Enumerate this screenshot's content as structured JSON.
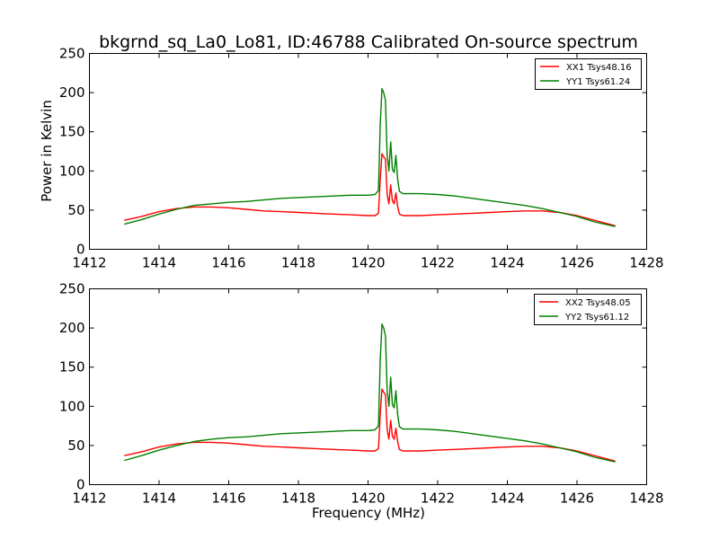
{
  "title": "bkgrnd_sq_La0_Lo81, ID:46788 Calibrated On-source spectrum",
  "xlabel": "Frequency (MHz)",
  "colors": {
    "xx": "#ff0000",
    "yy": "#008000"
  },
  "chart_data": [
    {
      "type": "line",
      "ylabel": "Power in Kelvin",
      "xlabel": "",
      "xlim": [
        1412,
        1428
      ],
      "ylim": [
        0,
        250
      ],
      "xticks": [
        "1412",
        "1414",
        "1416",
        "1418",
        "1420",
        "1422",
        "1424",
        "1426",
        "1428"
      ],
      "yticks": [
        "0",
        "50",
        "100",
        "150",
        "200",
        "250"
      ],
      "legend_position": "top-right",
      "series": [
        {
          "name": "XX1 Tsys48.16",
          "color": "#ff0000",
          "points": [
            [
              1413.0,
              37
            ],
            [
              1413.5,
              42
            ],
            [
              1414.0,
              48
            ],
            [
              1414.5,
              52
            ],
            [
              1415.0,
              54
            ],
            [
              1415.5,
              54
            ],
            [
              1416.0,
              53
            ],
            [
              1416.5,
              51
            ],
            [
              1417.0,
              49
            ],
            [
              1417.5,
              48
            ],
            [
              1418.0,
              47
            ],
            [
              1418.5,
              46
            ],
            [
              1419.0,
              45
            ],
            [
              1419.5,
              44
            ],
            [
              1420.0,
              43
            ],
            [
              1420.2,
              43
            ],
            [
              1420.3,
              46
            ],
            [
              1420.35,
              90
            ],
            [
              1420.4,
              122
            ],
            [
              1420.45,
              118
            ],
            [
              1420.5,
              115
            ],
            [
              1420.55,
              70
            ],
            [
              1420.6,
              58
            ],
            [
              1420.65,
              82
            ],
            [
              1420.7,
              62
            ],
            [
              1420.75,
              58
            ],
            [
              1420.8,
              72
            ],
            [
              1420.85,
              55
            ],
            [
              1420.9,
              45
            ],
            [
              1421.0,
              43
            ],
            [
              1421.5,
              43
            ],
            [
              1422.0,
              44
            ],
            [
              1422.5,
              45
            ],
            [
              1423.0,
              46
            ],
            [
              1423.5,
              47
            ],
            [
              1424.0,
              48
            ],
            [
              1424.5,
              49
            ],
            [
              1425.0,
              49
            ],
            [
              1425.5,
              47
            ],
            [
              1426.0,
              43
            ],
            [
              1426.5,
              37
            ],
            [
              1427.1,
              30
            ]
          ]
        },
        {
          "name": "YY1 Tsys61.24",
          "color": "#008000",
          "points": [
            [
              1413.0,
              32
            ],
            [
              1413.5,
              38
            ],
            [
              1414.0,
              45
            ],
            [
              1414.5,
              51
            ],
            [
              1415.0,
              56
            ],
            [
              1415.5,
              58
            ],
            [
              1416.0,
              60
            ],
            [
              1416.5,
              61
            ],
            [
              1417.0,
              63
            ],
            [
              1417.5,
              65
            ],
            [
              1418.0,
              66
            ],
            [
              1418.5,
              67
            ],
            [
              1419.0,
              68
            ],
            [
              1419.5,
              69
            ],
            [
              1420.0,
              69
            ],
            [
              1420.2,
              70
            ],
            [
              1420.3,
              75
            ],
            [
              1420.35,
              160
            ],
            [
              1420.4,
              205
            ],
            [
              1420.45,
              200
            ],
            [
              1420.5,
              190
            ],
            [
              1420.55,
              120
            ],
            [
              1420.6,
              100
            ],
            [
              1420.65,
              137
            ],
            [
              1420.7,
              102
            ],
            [
              1420.75,
              98
            ],
            [
              1420.8,
              120
            ],
            [
              1420.85,
              90
            ],
            [
              1420.9,
              74
            ],
            [
              1421.0,
              71
            ],
            [
              1421.5,
              71
            ],
            [
              1422.0,
              70
            ],
            [
              1422.5,
              68
            ],
            [
              1423.0,
              65
            ],
            [
              1423.5,
              62
            ],
            [
              1424.0,
              59
            ],
            [
              1424.5,
              56
            ],
            [
              1425.0,
              52
            ],
            [
              1425.5,
              47
            ],
            [
              1426.0,
              42
            ],
            [
              1426.5,
              35
            ],
            [
              1427.1,
              29
            ]
          ]
        }
      ]
    },
    {
      "type": "line",
      "ylabel": "",
      "xlabel": "Frequency (MHz)",
      "xlim": [
        1412,
        1428
      ],
      "ylim": [
        0,
        250
      ],
      "xticks": [
        "1412",
        "1414",
        "1416",
        "1418",
        "1420",
        "1422",
        "1424",
        "1426",
        "1428"
      ],
      "yticks": [
        "0",
        "50",
        "100",
        "150",
        "200",
        "250"
      ],
      "legend_position": "top-right",
      "series": [
        {
          "name": "XX2 Tsys48.05",
          "color": "#ff0000",
          "points": [
            [
              1413.0,
              37
            ],
            [
              1413.5,
              42
            ],
            [
              1414.0,
              48
            ],
            [
              1414.5,
              52
            ],
            [
              1415.0,
              54
            ],
            [
              1415.5,
              54
            ],
            [
              1416.0,
              53
            ],
            [
              1416.5,
              51
            ],
            [
              1417.0,
              49
            ],
            [
              1417.5,
              48
            ],
            [
              1418.0,
              47
            ],
            [
              1418.5,
              46
            ],
            [
              1419.0,
              45
            ],
            [
              1419.5,
              44
            ],
            [
              1420.0,
              43
            ],
            [
              1420.2,
              43
            ],
            [
              1420.3,
              46
            ],
            [
              1420.35,
              90
            ],
            [
              1420.4,
              122
            ],
            [
              1420.45,
              118
            ],
            [
              1420.5,
              115
            ],
            [
              1420.55,
              70
            ],
            [
              1420.6,
              58
            ],
            [
              1420.65,
              82
            ],
            [
              1420.7,
              62
            ],
            [
              1420.75,
              58
            ],
            [
              1420.8,
              72
            ],
            [
              1420.85,
              55
            ],
            [
              1420.9,
              45
            ],
            [
              1421.0,
              43
            ],
            [
              1421.5,
              43
            ],
            [
              1422.0,
              44
            ],
            [
              1422.5,
              45
            ],
            [
              1423.0,
              46
            ],
            [
              1423.5,
              47
            ],
            [
              1424.0,
              48
            ],
            [
              1424.5,
              49
            ],
            [
              1425.0,
              49
            ],
            [
              1425.5,
              47
            ],
            [
              1426.0,
              43
            ],
            [
              1426.5,
              37
            ],
            [
              1427.1,
              30
            ]
          ]
        },
        {
          "name": "YY2 Tsys61.12",
          "color": "#008000",
          "points": [
            [
              1413.0,
              31
            ],
            [
              1413.5,
              37
            ],
            [
              1414.0,
              44
            ],
            [
              1414.5,
              50
            ],
            [
              1415.0,
              55
            ],
            [
              1415.5,
              58
            ],
            [
              1416.0,
              60
            ],
            [
              1416.5,
              61
            ],
            [
              1417.0,
              63
            ],
            [
              1417.5,
              65
            ],
            [
              1418.0,
              66
            ],
            [
              1418.5,
              67
            ],
            [
              1419.0,
              68
            ],
            [
              1419.5,
              69
            ],
            [
              1420.0,
              69
            ],
            [
              1420.2,
              70
            ],
            [
              1420.3,
              75
            ],
            [
              1420.35,
              160
            ],
            [
              1420.4,
              205
            ],
            [
              1420.45,
              200
            ],
            [
              1420.5,
              190
            ],
            [
              1420.55,
              120
            ],
            [
              1420.6,
              100
            ],
            [
              1420.65,
              137
            ],
            [
              1420.7,
              102
            ],
            [
              1420.75,
              98
            ],
            [
              1420.8,
              120
            ],
            [
              1420.85,
              90
            ],
            [
              1420.9,
              74
            ],
            [
              1421.0,
              71
            ],
            [
              1421.5,
              71
            ],
            [
              1422.0,
              70
            ],
            [
              1422.5,
              68
            ],
            [
              1423.0,
              65
            ],
            [
              1423.5,
              62
            ],
            [
              1424.0,
              59
            ],
            [
              1424.5,
              56
            ],
            [
              1425.0,
              52
            ],
            [
              1425.5,
              47
            ],
            [
              1426.0,
              42
            ],
            [
              1426.5,
              35
            ],
            [
              1427.1,
              29
            ]
          ]
        }
      ]
    }
  ]
}
